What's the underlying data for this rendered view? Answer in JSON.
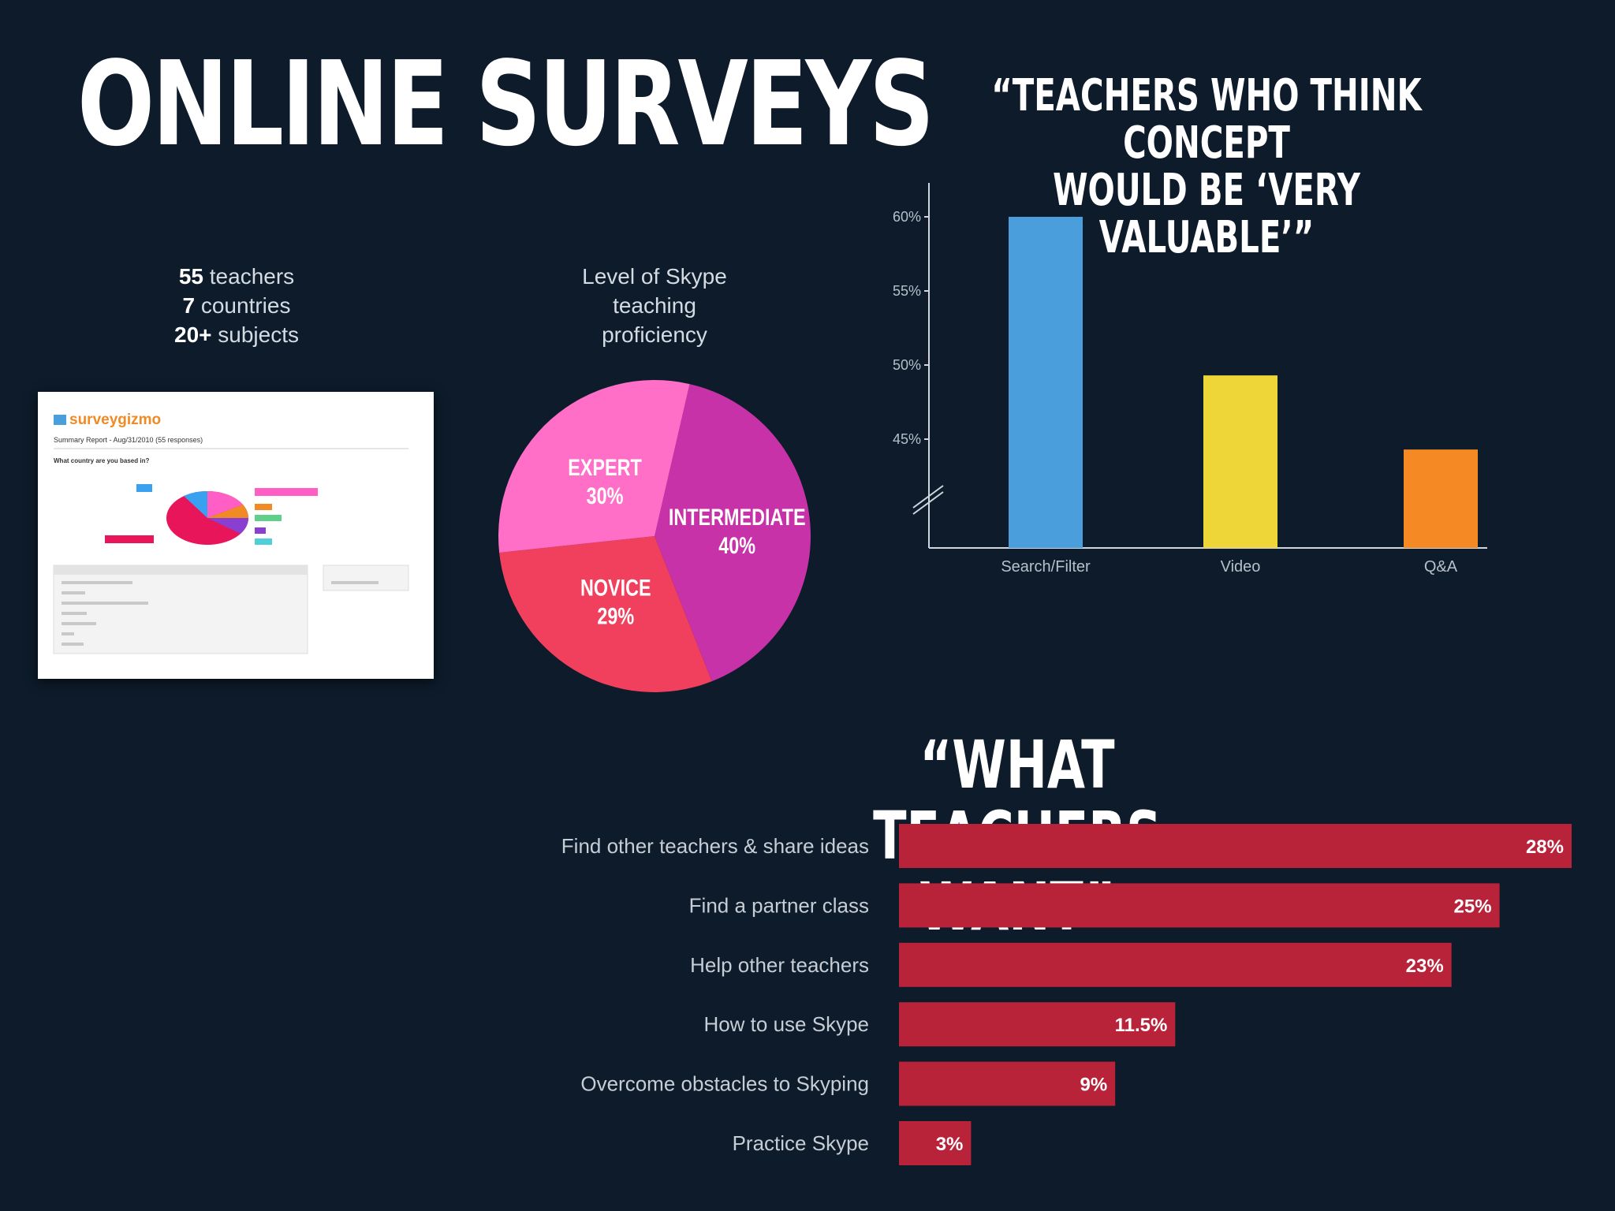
{
  "slide": {
    "title": "ONLINE SURVEYS"
  },
  "stats": [
    {
      "num": "55",
      "text": " teachers"
    },
    {
      "num": "7",
      "text": " countries"
    },
    {
      "num": "20+",
      "text": " subjects"
    }
  ],
  "report": {
    "brand": "surveygizmo",
    "subtitle": "Summary Report - Aug/31/2010 (55 responses)",
    "question": "What country are you based in?"
  },
  "pie": {
    "caption_lines": [
      "Level of Skype",
      "teaching",
      "proficiency"
    ]
  },
  "vbar": {
    "title_lines": [
      "“TEACHERS WHO THINK CONCEPT",
      "WOULD BE ‘VERY VALUABLE’”"
    ]
  },
  "hbar": {
    "title": "“WHAT TEACHERS WANT”"
  },
  "colors": {
    "background": "#0d1b2a",
    "expert": "#ff6fc8",
    "intermediate": "#c832a8",
    "novice": "#f0405e",
    "search": "#4b9edc",
    "video": "#efd638",
    "qa": "#f58a25",
    "hbar": "#b8233a"
  },
  "chart_data": [
    {
      "type": "pie",
      "title": "Level of Skype teaching proficiency",
      "slices": [
        {
          "label": "EXPERT",
          "value": 30,
          "value_label": "30%"
        },
        {
          "label": "INTERMEDIATE",
          "value": 40,
          "value_label": "40%"
        },
        {
          "label": "NOVICE",
          "value": 29,
          "value_label": "29%"
        }
      ]
    },
    {
      "type": "bar",
      "title": "“TEACHERS WHO THINK CONCEPT WOULD BE ‘VERY VALUABLE’”",
      "categories": [
        "Search/Filter",
        "Video",
        "Q&A"
      ],
      "values": [
        60,
        49.3,
        44.3
      ],
      "ylim": [
        40,
        62
      ],
      "yticks": [
        45,
        50,
        55,
        60
      ],
      "ytick_labels": [
        "45%",
        "50%",
        "55%",
        "60%"
      ],
      "axis_break": true
    },
    {
      "type": "bar",
      "orientation": "horizontal",
      "title": "“WHAT TEACHERS WANT”",
      "categories": [
        "Find other teachers & share ideas",
        "Find a partner class",
        "Help other teachers",
        "How to use Skype",
        "Overcome obstacles to Skyping",
        "Practice Skype"
      ],
      "values": [
        28,
        25,
        23,
        11.5,
        9,
        3
      ],
      "value_labels": [
        "28%",
        "25%",
        "23%",
        "11.5%",
        "9%",
        "3%"
      ]
    }
  ]
}
